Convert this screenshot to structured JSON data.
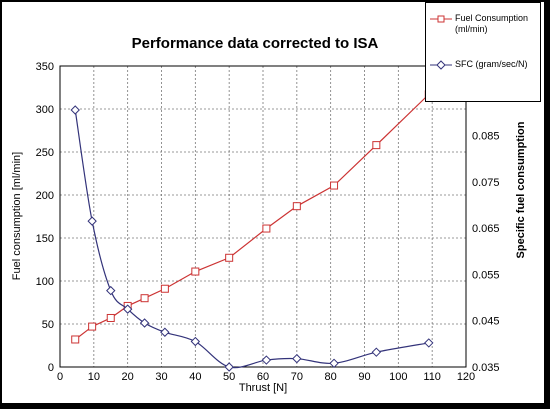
{
  "chart_data": {
    "type": "line",
    "title": "Performance data corrected to ISA",
    "xlabel": "Thrust [N]",
    "ylabel": "Fuel consumption [ml/min]",
    "y2label": "Specific fuel consumption",
    "xlim": [
      0,
      120
    ],
    "ylim": [
      0,
      350
    ],
    "y2lim": [
      0.035,
      0.1
    ],
    "xticks": [
      "0",
      "10",
      "20",
      "30",
      "40",
      "50",
      "60",
      "70",
      "80",
      "90",
      "100",
      "110",
      "120"
    ],
    "yticks": [
      "0",
      "50",
      "100",
      "150",
      "200",
      "250",
      "300",
      "350"
    ],
    "y2ticks": [
      "0.035",
      "0.045",
      "0.055",
      "0.065",
      "0.075",
      "0.085",
      "0.095"
    ],
    "grid": true,
    "legend_position": "top-right",
    "series": [
      {
        "name": "Fuel Consumption (ml/min)",
        "axis": "left",
        "color": "#cc3333",
        "marker": "square",
        "x": [
          4.5,
          9.5,
          15,
          20,
          25,
          31,
          40,
          50,
          61,
          70,
          81,
          93.5,
          109
        ],
        "y": [
          32,
          47,
          57,
          71,
          80,
          91,
          111,
          127,
          161,
          187,
          211,
          258,
          317
        ]
      },
      {
        "name": "SFC (gram/sec/N)",
        "axis": "right",
        "color": "#33337a",
        "marker": "diamond",
        "x": [
          4.5,
          9.5,
          15,
          20,
          25,
          31,
          40,
          50,
          61,
          70,
          81,
          93.5,
          109
        ],
        "y": [
          0.0905,
          0.0665,
          0.0515,
          0.0475,
          0.0445,
          0.0425,
          0.0405,
          0.035,
          0.0365,
          0.0368,
          0.0358,
          0.0382,
          0.0402
        ]
      }
    ]
  }
}
